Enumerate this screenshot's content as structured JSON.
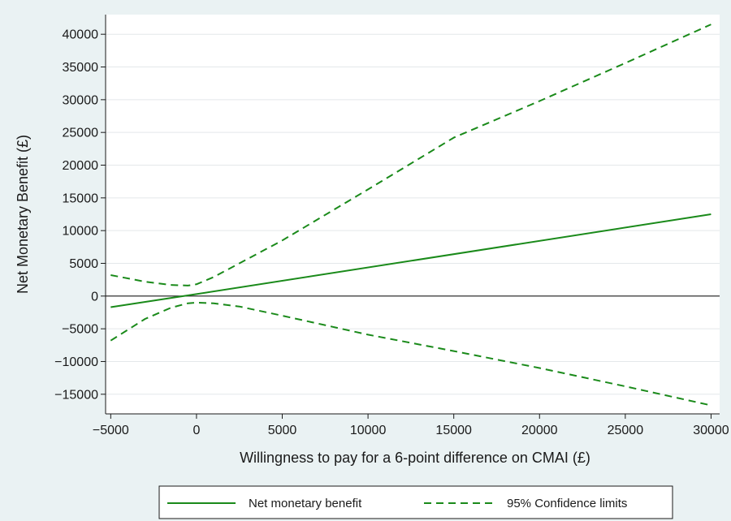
{
  "chart_data": {
    "type": "line",
    "xlabel": "Willingness to pay for a 6-point difference on CMAI (£)",
    "ylabel": "Net Monetary Benefit (£)",
    "xlim": [
      -5000,
      30000
    ],
    "ylim": [
      -18000,
      43000
    ],
    "x_ticks": [
      -5000,
      0,
      5000,
      10000,
      15000,
      20000,
      25000,
      30000
    ],
    "x_tick_labels": [
      "−5000",
      "0",
      "5000",
      "10000",
      "15000",
      "20000",
      "25000",
      "30000"
    ],
    "y_ticks": [
      40000,
      35000,
      30000,
      25000,
      20000,
      15000,
      10000,
      5000,
      0,
      -5000,
      -10000,
      -15000
    ],
    "y_tick_labels": [
      "40000",
      "35000",
      "30000",
      "25000",
      "20000",
      "15000",
      "10000",
      "5000",
      "0",
      "−5000",
      "−10000",
      "−15000"
    ],
    "grid": "horizontal",
    "reference_line_y": 0,
    "legend_position": "bottom",
    "series": [
      {
        "name": "Net monetary benefit",
        "style": "solid",
        "color": "#1a8a1a",
        "x": [
          -5000,
          0,
          30000
        ],
        "y": [
          -1700,
          300,
          12500
        ]
      },
      {
        "name": "95% Confidence limits",
        "style": "dashed",
        "color": "#1a8a1a",
        "x": [
          -5000,
          -3000,
          -1500,
          -500,
          0,
          1000,
          2500,
          5000,
          10000,
          15000,
          20000,
          25000,
          30000
        ],
        "y": [
          3200,
          2200,
          1700,
          1600,
          1800,
          2900,
          5000,
          8500,
          16300,
          24200,
          29800,
          35600,
          41500
        ]
      },
      {
        "name": "95% Confidence limits",
        "style": "dashed",
        "color": "#1a8a1a",
        "x": [
          -5000,
          -3000,
          -1500,
          -500,
          0,
          1000,
          2500,
          5000,
          10000,
          15000,
          20000,
          25000,
          30000
        ],
        "y": [
          -6800,
          -3500,
          -1800,
          -1100,
          -1000,
          -1100,
          -1600,
          -3000,
          -5900,
          -8400,
          -11000,
          -13800,
          -16700
        ]
      }
    ]
  }
}
